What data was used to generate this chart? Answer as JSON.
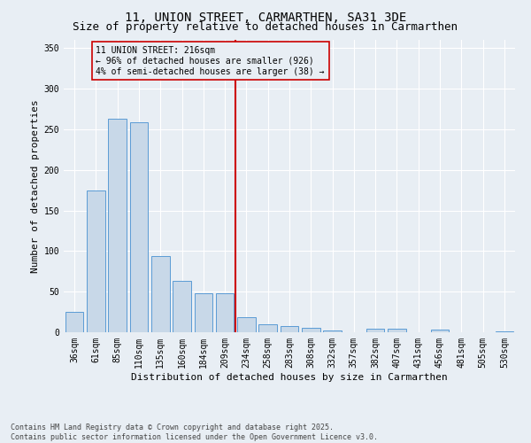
{
  "title_line1": "11, UNION STREET, CARMARTHEN, SA31 3DE",
  "title_line2": "Size of property relative to detached houses in Carmarthen",
  "xlabel": "Distribution of detached houses by size in Carmarthen",
  "ylabel": "Number of detached properties",
  "categories": [
    "36sqm",
    "61sqm",
    "85sqm",
    "110sqm",
    "135sqm",
    "160sqm",
    "184sqm",
    "209sqm",
    "234sqm",
    "258sqm",
    "283sqm",
    "308sqm",
    "332sqm",
    "357sqm",
    "382sqm",
    "407sqm",
    "431sqm",
    "456sqm",
    "481sqm",
    "505sqm",
    "530sqm"
  ],
  "values": [
    25,
    175,
    263,
    258,
    94,
    63,
    48,
    48,
    19,
    10,
    8,
    5,
    2,
    0,
    4,
    4,
    0,
    3,
    0,
    0,
    1
  ],
  "bar_color": "#c8d8e8",
  "bar_edge_color": "#5b9bd5",
  "background_color": "#e8eef4",
  "grid_color": "#ffffff",
  "vline_x_index": 7,
  "vline_color": "#cc0000",
  "annotation_title": "11 UNION STREET: 216sqm",
  "annotation_line2": "← 96% of detached houses are smaller (926)",
  "annotation_line3": "4% of semi-detached houses are larger (38) →",
  "ylim": [
    0,
    360
  ],
  "yticks": [
    0,
    50,
    100,
    150,
    200,
    250,
    300,
    350
  ],
  "footnote_line1": "Contains HM Land Registry data © Crown copyright and database right 2025.",
  "footnote_line2": "Contains public sector information licensed under the Open Government Licence v3.0.",
  "title_fontsize": 10,
  "subtitle_fontsize": 9,
  "axis_label_fontsize": 8,
  "tick_fontsize": 7,
  "annotation_fontsize": 7,
  "footnote_fontsize": 6
}
